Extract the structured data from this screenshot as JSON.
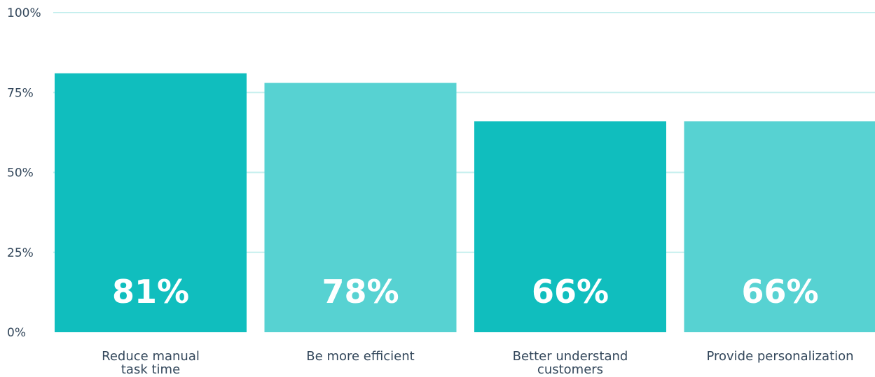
{
  "chart_data": {
    "type": "bar",
    "categories": [
      [
        "Reduce manual",
        "task time"
      ],
      [
        "Be more efficient"
      ],
      [
        "Better understand",
        "customers"
      ],
      [
        "Provide personalization"
      ]
    ],
    "values": [
      81,
      78,
      66,
      66
    ],
    "data_labels": [
      "81%",
      "78%",
      "66%",
      "66%"
    ],
    "ylim": [
      0,
      100
    ],
    "yticks": [
      0,
      25,
      50,
      75,
      100
    ],
    "ytick_labels": [
      "0%",
      "25%",
      "50%",
      "75%",
      "100%"
    ],
    "grid": true,
    "colors": {
      "bar_dark": "#10bebe",
      "bar_light": "#57d2d2",
      "grid": "#c6efee",
      "text": "#33475b"
    }
  }
}
